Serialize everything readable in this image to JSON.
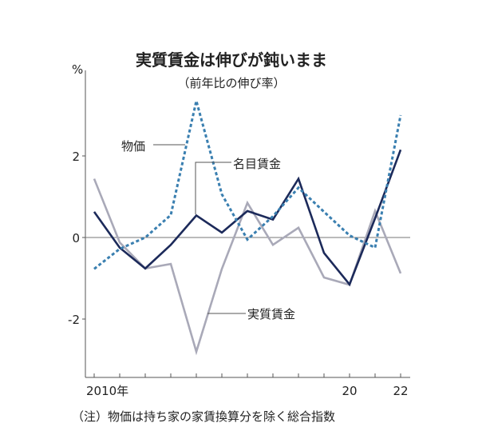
{
  "chart_data": {
    "type": "line",
    "title": "実質賃金は伸びが鈍いまま",
    "subtitle": "（前年比の伸び率）",
    "ylabel": "%",
    "xlabel": "",
    "ylim": [
      -3.4,
      3.6
    ],
    "yticks": [
      2,
      0,
      -2
    ],
    "ytick_labels": [
      "2",
      "0",
      "-2"
    ],
    "x": [
      2010,
      2011,
      2012,
      2013,
      2014,
      2015,
      2016,
      2017,
      2018,
      2019,
      2020,
      2021,
      2022
    ],
    "xtick_labels": [
      {
        "x": 2010,
        "label": "2010年"
      },
      {
        "x": 2020,
        "label": "20"
      },
      {
        "x": 2022,
        "label": "22"
      }
    ],
    "grid": false,
    "series": [
      {
        "name": "物価",
        "style": "dashed",
        "color": "#3a7fb0",
        "values": [
          -0.77,
          -0.28,
          0.0,
          0.55,
          3.35,
          1.06,
          -0.05,
          0.52,
          1.22,
          0.63,
          0.05,
          -0.25,
          3.0
        ]
      },
      {
        "name": "名目賃金",
        "style": "solid",
        "color": "#1c2a5a",
        "values": [
          0.63,
          -0.25,
          -0.76,
          -0.18,
          0.54,
          0.12,
          0.65,
          0.44,
          1.44,
          -0.38,
          -1.15,
          0.47,
          2.15
        ]
      },
      {
        "name": "実質賃金",
        "style": "solid",
        "color": "#a9a9b8",
        "values": [
          1.44,
          -0.12,
          -0.76,
          -0.65,
          -2.8,
          -0.77,
          0.85,
          -0.18,
          0.24,
          -0.98,
          -1.16,
          0.65,
          -0.88
        ]
      }
    ],
    "annotations": [
      "（注）物価は持ち家の家賃換算分を除く総合指数"
    ]
  }
}
